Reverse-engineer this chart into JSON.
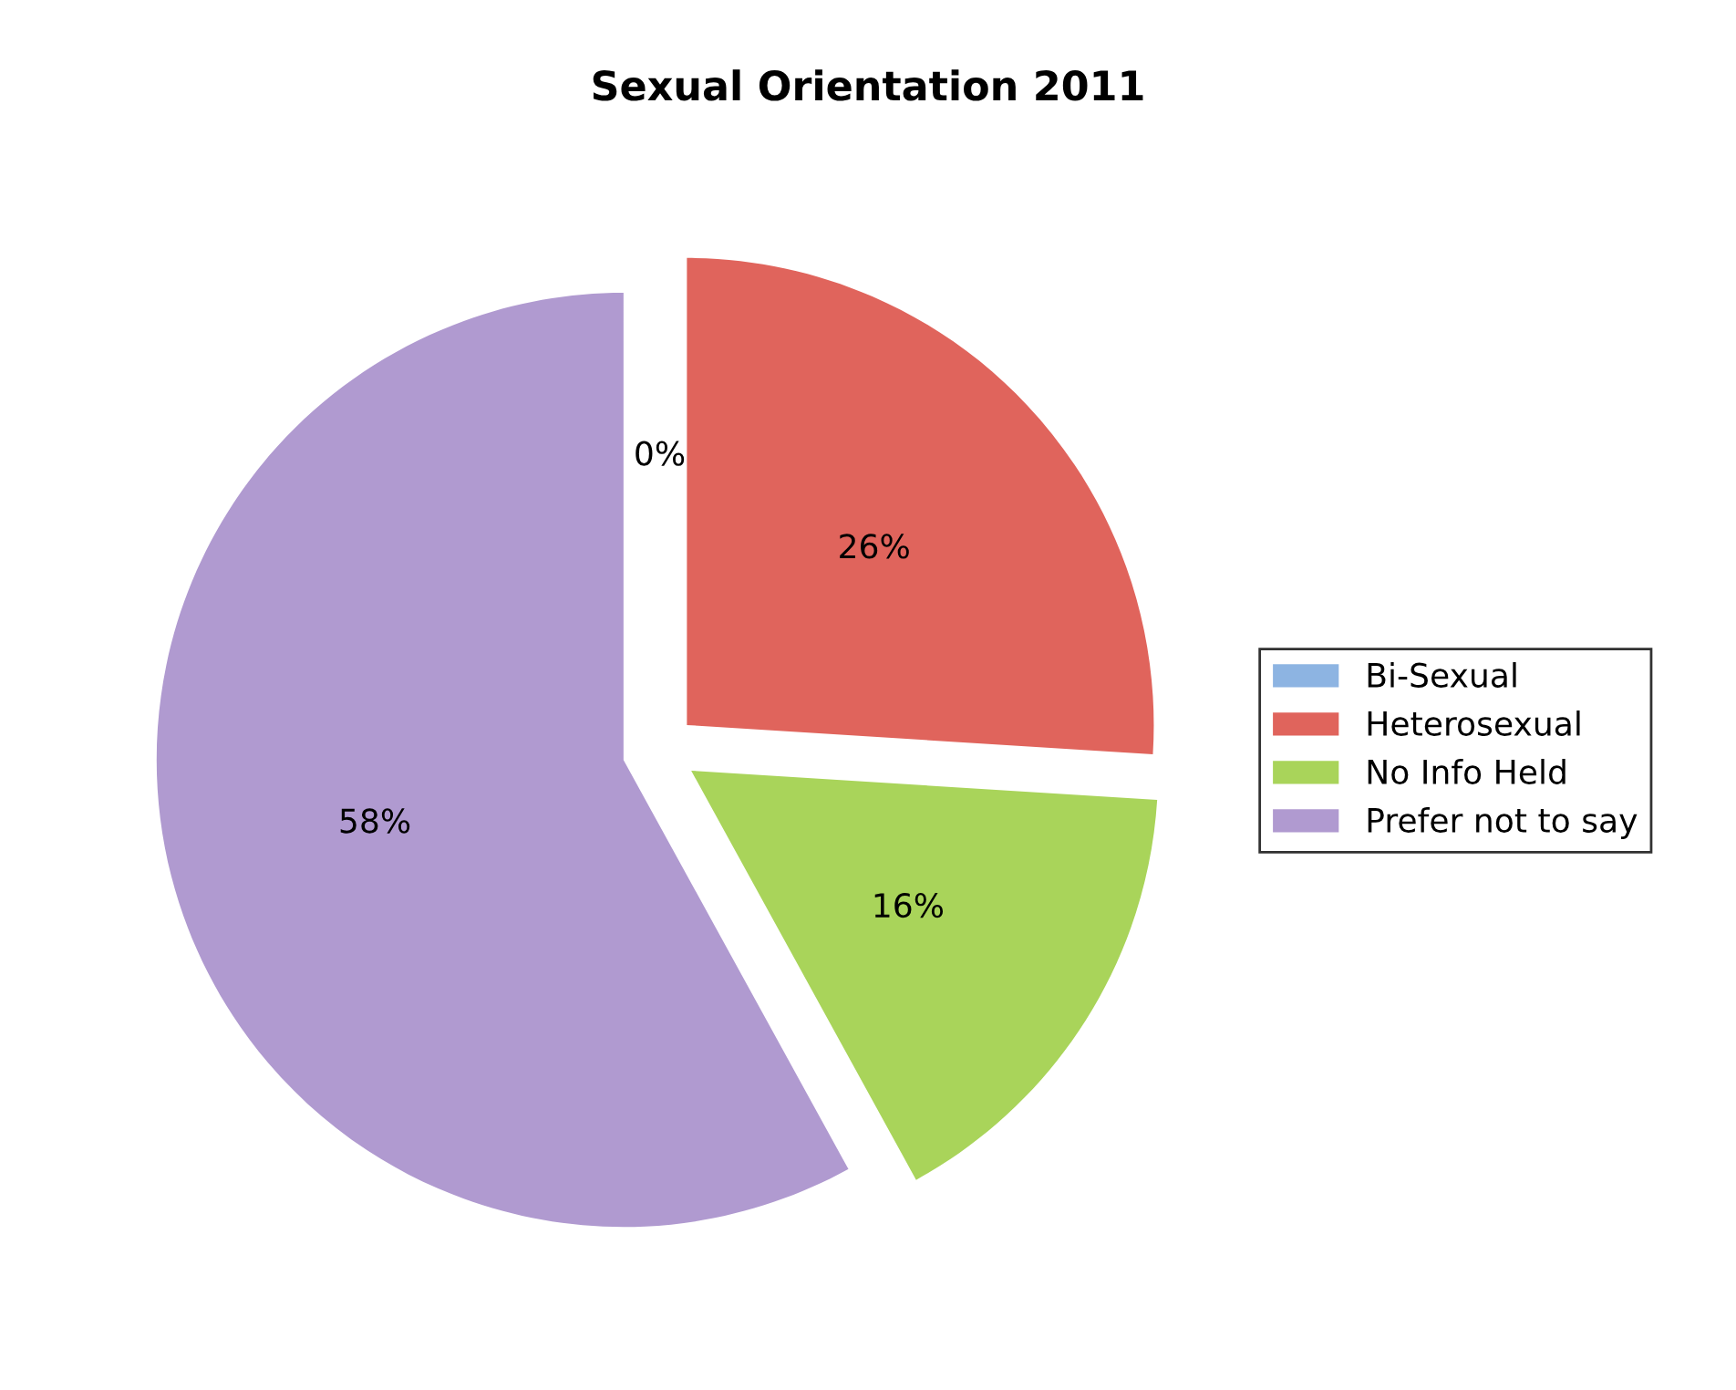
{
  "chart_data": {
    "type": "pie",
    "title": "Sexual Orientation 2011",
    "categories": [
      "Bi-Sexual",
      "Heterosexual",
      "No Info Held",
      "Prefer not to say"
    ],
    "values": [
      0,
      26,
      16,
      58
    ],
    "colors": [
      "#8db4e2",
      "#e0645c",
      "#a9d45a",
      "#b09ad0"
    ],
    "value_labels": [
      "0%",
      "26%",
      "16%",
      "58%"
    ],
    "legend": "right"
  }
}
